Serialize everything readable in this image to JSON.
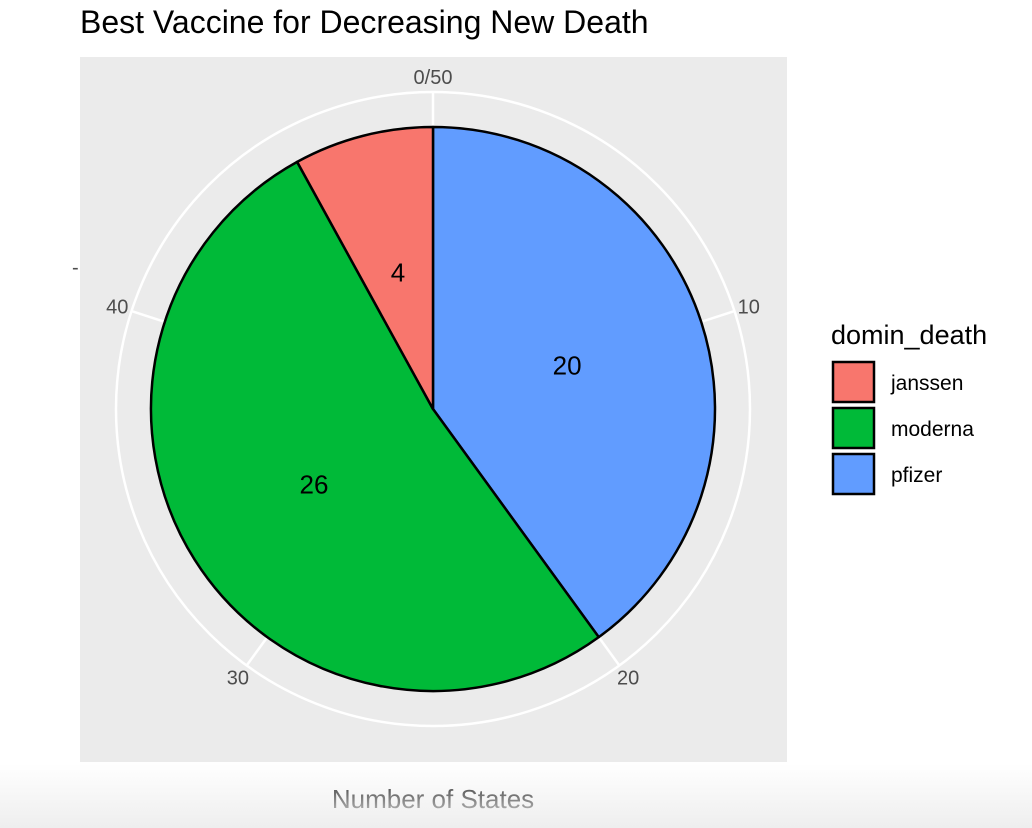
{
  "chart_data": {
    "type": "pie",
    "title": "Best Vaccine for Decreasing New Death",
    "xlabel": "Number of States",
    "ylabel": "-",
    "total": 50,
    "axis_ticks": [
      {
        "value": 0,
        "label": "0/50"
      },
      {
        "value": 10,
        "label": "10"
      },
      {
        "value": 20,
        "label": "20"
      },
      {
        "value": 30,
        "label": "30"
      },
      {
        "value": 40,
        "label": "40"
      }
    ],
    "slices": [
      {
        "label": "pfizer",
        "value": 20,
        "color": "#619CFF"
      },
      {
        "label": "moderna",
        "value": 26,
        "color": "#00BA38"
      },
      {
        "label": "janssen",
        "value": 4,
        "color": "#F8766D"
      }
    ],
    "legend": {
      "title": "domin_death",
      "placement": "right",
      "entries": [
        {
          "label": "janssen",
          "color": "#F8766D"
        },
        {
          "label": "moderna",
          "color": "#00BA38"
        },
        {
          "label": "pfizer",
          "color": "#619CFF"
        }
      ]
    },
    "panel_background": "#EBEBEB",
    "grid": true
  }
}
